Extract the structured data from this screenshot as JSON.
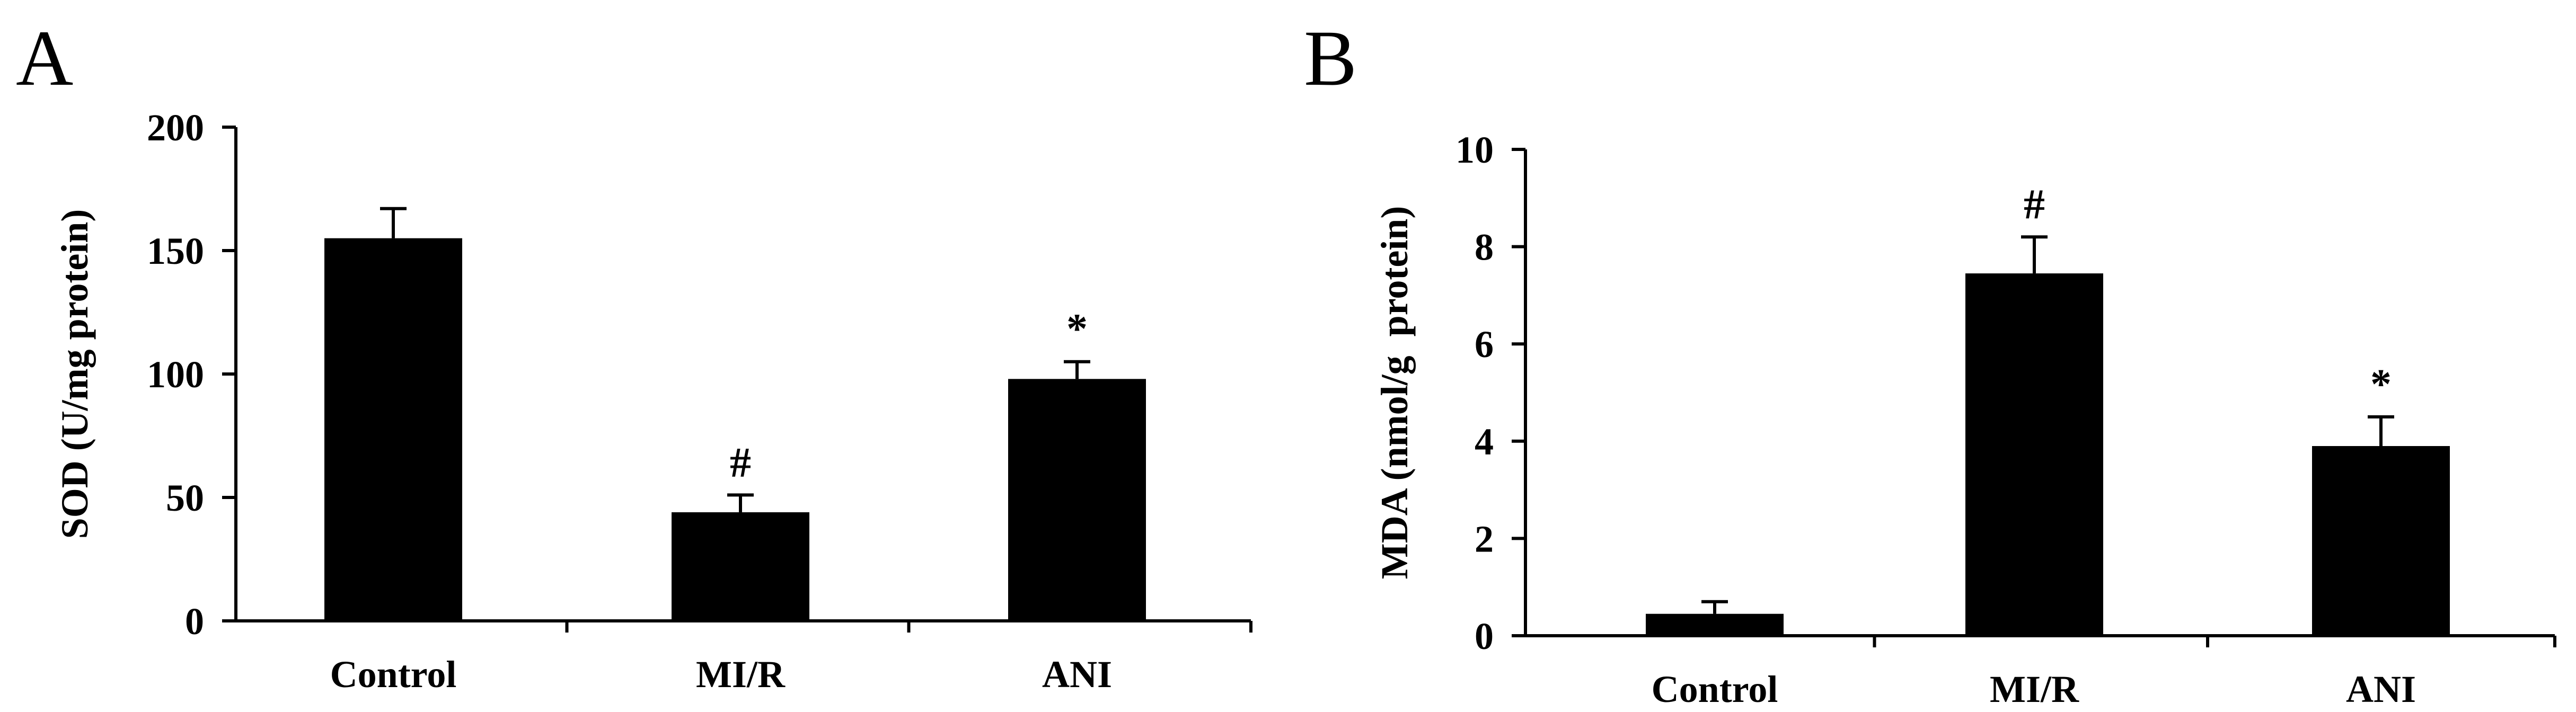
{
  "chart_data": [
    {
      "panel_label": "A",
      "type": "bar",
      "categories": [
        "Control",
        "MI/R",
        "ANI"
      ],
      "values": [
        155,
        44,
        98
      ],
      "errors": [
        12,
        7,
        7
      ],
      "annotations": [
        "",
        "#",
        "*"
      ],
      "ylabel": "SOD (U/mg protein)",
      "xlabel": "",
      "ylim": [
        0,
        200
      ],
      "yticks": [
        "0",
        "50",
        "100",
        "150",
        "200"
      ],
      "ytick_values": [
        0,
        50,
        100,
        150,
        200
      ],
      "bar_color": "#000000",
      "grid": false
    },
    {
      "panel_label": "B",
      "type": "bar",
      "categories": [
        "Control",
        "MI/R",
        "ANI"
      ],
      "values": [
        0.45,
        7.45,
        3.9
      ],
      "errors": [
        0.25,
        0.75,
        0.6
      ],
      "annotations": [
        "",
        "#",
        "*"
      ],
      "ylabel": "MDA (nmol/g  protein)",
      "xlabel": "",
      "ylim": [
        0,
        10
      ],
      "yticks": [
        "0",
        "2",
        "4",
        "6",
        "8",
        "10"
      ],
      "ytick_values": [
        0,
        2,
        4,
        6,
        8,
        10
      ],
      "bar_color": "#000000",
      "grid": false
    }
  ]
}
